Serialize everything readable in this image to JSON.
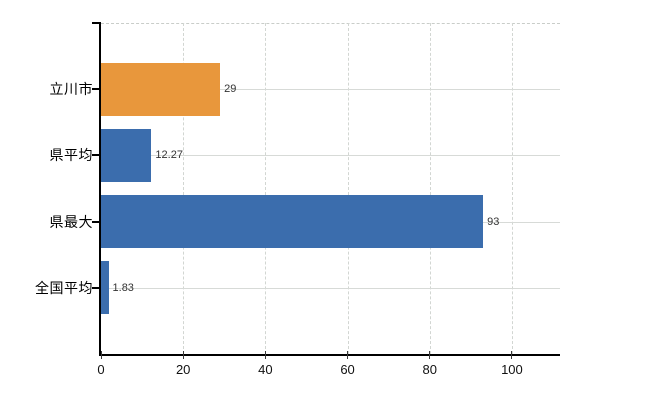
{
  "chart": {
    "background_color": "#ffffff",
    "axis_color": "#000000",
    "vertical_grid_color": "#d2d6d2",
    "horizontal_grid_color": "#d7dad7",
    "top_border_color": "#c9cdc9",
    "value_label_color": "#333333",
    "tick_label_color": "#111111"
  },
  "chart_data": {
    "type": "bar",
    "orientation": "horizontal",
    "title": "",
    "categories": [
      "立川市",
      "県平均",
      "県最大",
      "全国平均"
    ],
    "values": [
      29,
      12.27,
      93,
      1.83
    ],
    "value_labels": [
      "29",
      "12.27",
      "93",
      "1.83"
    ],
    "bar_colors": [
      "#e8973c",
      "#3b6dad",
      "#3b6dad",
      "#3b6dad"
    ],
    "x_ticks": [
      0,
      20,
      40,
      60,
      80,
      100
    ],
    "x_tick_labels": [
      "0",
      "20",
      "40",
      "60",
      "80",
      "100"
    ],
    "xlim": [
      0,
      111.7
    ],
    "grid": true,
    "legend": false
  }
}
